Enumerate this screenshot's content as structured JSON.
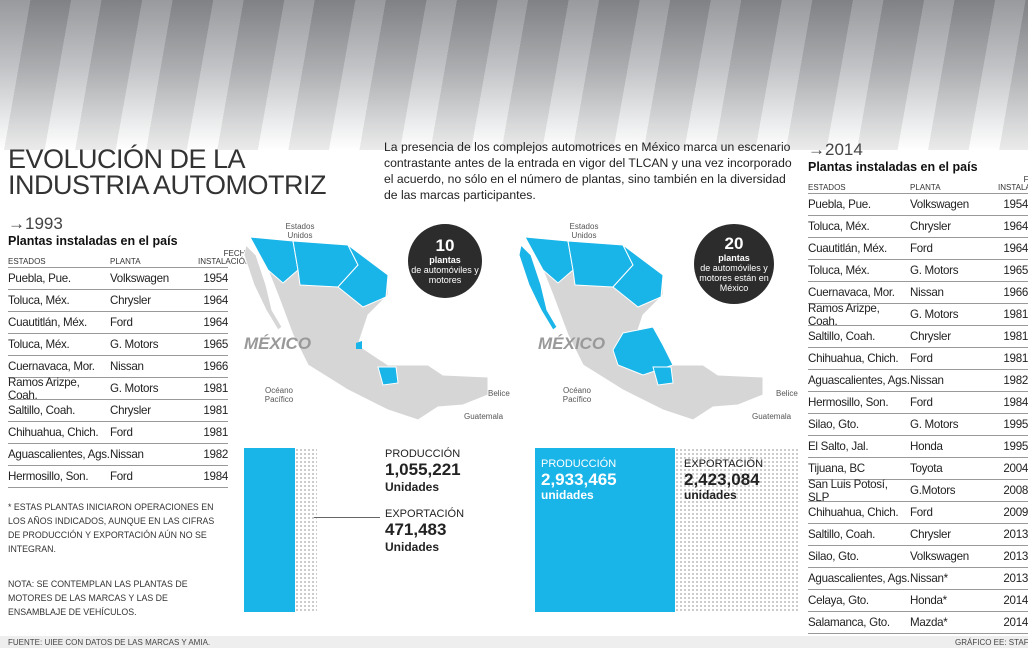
{
  "header": {
    "title": [
      "EVOLUCIÓN DE LA",
      "INDUSTRIA AUTOMOTRIZ"
    ],
    "intro": "La presencia de los complejos automotrices en México marca un escenario contrastante antes de la entrada en vigor del TLCAN y una vez incorporado el acuerdo, no sólo en el número de plantas, sino también en la diversidad de las marcas participantes."
  },
  "table_1993": {
    "year": "→1993",
    "subtitle": "Plantas instaladas en el país",
    "columns": [
      "ESTADOS",
      "PLANTA",
      "FECHA\nINSTALACIÓN"
    ],
    "rows": [
      [
        "Puebla, Pue.",
        "Volkswagen",
        "1954"
      ],
      [
        "Toluca, Méx.",
        "Chrysler",
        "1964"
      ],
      [
        "Cuautitlán, Méx.",
        "Ford",
        "1964"
      ],
      [
        "Toluca, Méx.",
        "G. Motors",
        "1965"
      ],
      [
        "Cuernavaca, Mor.",
        "Nissan",
        "1966"
      ],
      [
        "Ramos Arizpe, Coah.",
        "G. Motors",
        "1981"
      ],
      [
        "Saltillo, Coah.",
        "Chrysler",
        "1981"
      ],
      [
        "Chihuahua, Chich.",
        "Ford",
        "1981"
      ],
      [
        "Aguascalientes, Ags.",
        "Nissan",
        "1982"
      ],
      [
        "Hermosillo, Son.",
        "Ford",
        "1984"
      ]
    ]
  },
  "table_2014": {
    "year": "→2014",
    "subtitle": "Plantas instaladas en el país",
    "columns": [
      "ESTADOS",
      "PLANTA",
      "FECHA\nINSTALACIÓN"
    ],
    "rows": [
      [
        "Puebla, Pue.",
        "Volkswagen",
        "1954"
      ],
      [
        "Toluca, Méx.",
        "Chrysler",
        "1964"
      ],
      [
        "Cuautitlán, Méx.",
        "Ford",
        "1964"
      ],
      [
        "Toluca, Méx.",
        "G. Motors",
        "1965"
      ],
      [
        "Cuernavaca, Mor.",
        "Nissan",
        "1966"
      ],
      [
        "Ramos Arizpe, Coah.",
        "G. Motors",
        "1981"
      ],
      [
        "Saltillo, Coah.",
        "Chrysler",
        "1981"
      ],
      [
        "Chihuahua, Chich.",
        "Ford",
        "1981"
      ],
      [
        "Aguascalientes, Ags.",
        "Nissan",
        "1982"
      ],
      [
        "Hermosillo, Son.",
        "Ford",
        "1984"
      ],
      [
        "Silao, Gto.",
        "G. Motors",
        "1995"
      ],
      [
        "El Salto, Jal.",
        "Honda",
        "1995"
      ],
      [
        "Tijuana, BC",
        "Toyota",
        "2004"
      ],
      [
        "San Luis Potosí, SLP",
        "G.Motors",
        "2008"
      ],
      [
        "Chihuahua, Chich.",
        "Ford",
        "2009"
      ],
      [
        "Saltillo, Coah.",
        "Chrysler",
        "2013"
      ],
      [
        "Silao, Gto.",
        "Volkswagen",
        "2013"
      ],
      [
        "Aguascalientes, Ags.",
        "Nissan*",
        "2013"
      ],
      [
        "Celaya, Gto.",
        "Honda*",
        "2014"
      ],
      [
        "Salamanca, Gto.",
        "Mazda*",
        "2014"
      ]
    ]
  },
  "notes": [
    "* ESTAS PLANTAS INICIARON OPERACIONES EN LOS AÑOS INDICADOS, AUNQUE EN LAS CIFRAS DE PRODUCCIÓN Y EXPORTACIÓN AÚN NO SE INTEGRAN.",
    "NOTA: SE CONTEMPLAN LAS PLANTAS DE MOTORES DE LAS MARCAS Y LAS DE ENSAMBLAJE DE VEHÍCULOS."
  ],
  "map_labels": {
    "usa": "Estados Unidos",
    "mexico": "MÉXICO",
    "ocean": "Océano Pacífico",
    "belize": "Belice",
    "guatemala": "Guatemala"
  },
  "bubble_1993": {
    "number": "10",
    "unit": "plantas",
    "text": "de automóviles y motores"
  },
  "bubble_2014": {
    "number": "20",
    "unit": "plantas",
    "text": "de automóviles y motores están en México"
  },
  "stats_1993": {
    "production_label": "PRODUCCIÓN",
    "production": "1,055,221",
    "production_unit": "Unidades",
    "export_label": "EXPORTACIÓN",
    "export": "471,483",
    "export_unit": "Unidades"
  },
  "stats_2014": {
    "production_label": "PRODUCCIÓN",
    "production": "2,933,465",
    "production_unit": "unidades",
    "export_label": "EXPORTACIÓN",
    "export": "2,423,084",
    "export_unit": "unidades"
  },
  "footer": {
    "source": "FUENTE: UIEE CON DATOS DE LAS MARCAS Y AMIA.",
    "credit": "GRÁFICO EE: STAFF"
  }
}
